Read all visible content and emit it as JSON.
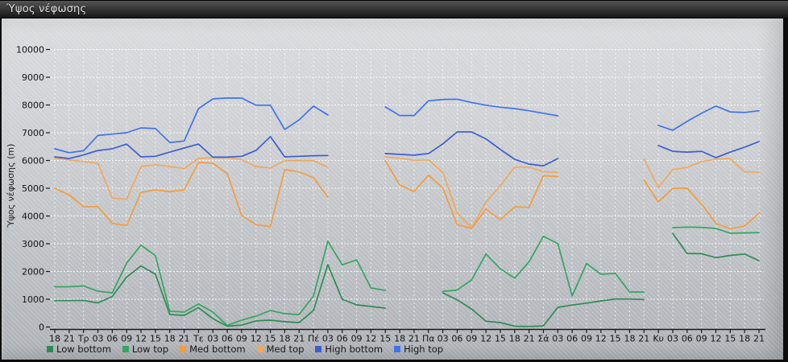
{
  "window": {
    "title": "Ύψος νέφωσης"
  },
  "chart_data": {
    "type": "line",
    "title": "Ύψος νέφωσης",
    "ylabel": "Ύψος νέφωσης (m)",
    "ylim": [
      0,
      10000
    ],
    "y_tick_step": 1000,
    "grid": "dashed white horizontal and vertical gridlines on hatched gray background",
    "legend_position": "bottom-left",
    "x_tick_labels": [
      "18",
      "21",
      "Τρ",
      "03",
      "06",
      "09",
      "12",
      "15",
      "18",
      "21",
      "Τε",
      "03",
      "06",
      "09",
      "12",
      "15",
      "18",
      "21",
      "Πέ",
      "03",
      "06",
      "09",
      "12",
      "15",
      "18",
      "21",
      "Πα",
      "03",
      "06",
      "09",
      "12",
      "15",
      "18",
      "21",
      "Σά",
      "03",
      "06",
      "09",
      "12",
      "15",
      "18",
      "21",
      "Κυ",
      "03",
      "06",
      "09",
      "12",
      "15",
      "18",
      "21"
    ],
    "series": [
      {
        "name": "Low bottom",
        "color": "#2e8b57",
        "values": [
          950,
          950,
          960,
          870,
          1100,
          1800,
          2200,
          1900,
          450,
          420,
          700,
          300,
          30,
          70,
          220,
          245,
          190,
          160,
          600,
          2250,
          1000,
          800,
          740,
          680,
          null,
          null,
          null,
          1230,
          980,
          650,
          210,
          160,
          30,
          20,
          40,
          710,
          790,
          860,
          940,
          1010,
          1010,
          990,
          null,
          3370,
          2650,
          2640,
          2500,
          2580,
          2630,
          2390
        ]
      },
      {
        "name": "Low top",
        "color": "#34a563",
        "values": [
          1450,
          1450,
          1480,
          1290,
          1230,
          2300,
          2950,
          2570,
          570,
          540,
          830,
          540,
          60,
          250,
          390,
          590,
          480,
          450,
          1120,
          3090,
          2240,
          2420,
          1410,
          1320,
          null,
          null,
          null,
          1280,
          1330,
          1700,
          2630,
          2100,
          1760,
          2350,
          3270,
          3010,
          1120,
          2290,
          1900,
          1930,
          1260,
          1260,
          null,
          3580,
          3600,
          3590,
          3550,
          3380,
          3390,
          3400
        ]
      },
      {
        "name": "Med bottom",
        "color": "#f29d3f",
        "values": [
          5000,
          4760,
          4330,
          4340,
          3730,
          3660,
          4850,
          4940,
          4880,
          4940,
          5930,
          5900,
          5530,
          4020,
          3690,
          3620,
          5670,
          5590,
          5380,
          4680,
          null,
          null,
          null,
          5990,
          5120,
          4880,
          5470,
          5010,
          3690,
          3550,
          4250,
          3870,
          4330,
          4310,
          5450,
          5420,
          null,
          null,
          null,
          null,
          null,
          5290,
          4510,
          4990,
          5000,
          4430,
          3730,
          3540,
          3640,
          4100
        ]
      },
      {
        "name": "Med top",
        "color": "#f0a95f",
        "values": [
          6080,
          6020,
          5960,
          5900,
          4650,
          4600,
          5780,
          5850,
          5780,
          5710,
          6070,
          6100,
          6100,
          6030,
          5780,
          5730,
          5990,
          6000,
          5990,
          5760,
          null,
          null,
          null,
          6130,
          6080,
          6010,
          6020,
          5580,
          4100,
          3580,
          4500,
          5090,
          5760,
          5760,
          5600,
          5570,
          null,
          null,
          null,
          null,
          null,
          6050,
          5030,
          5670,
          5750,
          5960,
          6050,
          6070,
          5590,
          5580
        ]
      },
      {
        "name": "High bottom",
        "color": "#3c5ed1",
        "values": [
          6130,
          6070,
          6200,
          6360,
          6420,
          6590,
          6130,
          6150,
          6300,
          6450,
          6590,
          6120,
          6120,
          6150,
          6360,
          6860,
          6130,
          6150,
          6170,
          6180,
          null,
          null,
          null,
          6250,
          6220,
          6190,
          6250,
          6600,
          7030,
          7030,
          6780,
          6400,
          6040,
          5870,
          5810,
          6070,
          null,
          null,
          null,
          null,
          null,
          null,
          6540,
          6330,
          6300,
          6330,
          6100,
          6300,
          6480,
          6680
        ]
      },
      {
        "name": "High top",
        "color": "#3f73ea",
        "values": [
          6420,
          6280,
          6350,
          6900,
          6950,
          7000,
          7175,
          7150,
          6650,
          6700,
          7870,
          8220,
          8250,
          8250,
          7990,
          7990,
          7120,
          7460,
          7960,
          7640,
          null,
          null,
          null,
          7930,
          7620,
          7620,
          8150,
          8200,
          8210,
          8090,
          7990,
          7920,
          7870,
          7790,
          7700,
          7610,
          null,
          null,
          null,
          null,
          null,
          null,
          7265,
          7090,
          7410,
          7700,
          7960,
          7750,
          7730,
          7790
        ]
      }
    ]
  }
}
